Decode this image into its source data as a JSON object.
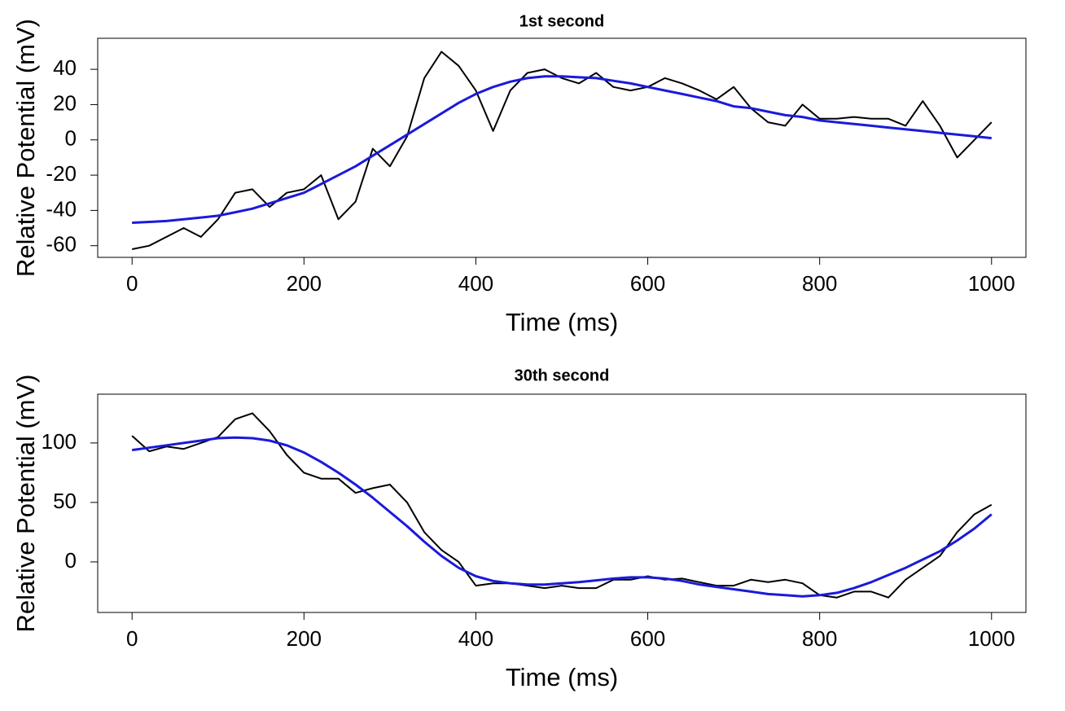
{
  "chart_data": [
    {
      "type": "line",
      "title": "1st second",
      "xlabel": "Time (ms)",
      "ylabel": "Relative Potential (mV)",
      "x": [
        0,
        20,
        40,
        60,
        80,
        100,
        120,
        140,
        160,
        180,
        200,
        220,
        240,
        260,
        280,
        300,
        320,
        340,
        360,
        380,
        400,
        420,
        440,
        460,
        480,
        500,
        520,
        540,
        560,
        580,
        600,
        620,
        640,
        660,
        680,
        700,
        720,
        740,
        760,
        780,
        800,
        820,
        840,
        860,
        880,
        900,
        920,
        940,
        960,
        980,
        1000
      ],
      "series": [
        {
          "color": "#000000",
          "values": [
            -62,
            -60,
            -55,
            -50,
            -55,
            -45,
            -30,
            -28,
            -38,
            -30,
            -28,
            -20,
            -45,
            -35,
            -5,
            -15,
            2,
            35,
            50,
            42,
            28,
            5,
            28,
            38,
            40,
            35,
            32,
            38,
            30,
            28,
            30,
            35,
            32,
            28,
            23,
            30,
            18,
            10,
            8,
            20,
            12,
            12,
            13,
            12,
            12,
            8,
            22,
            8,
            -10,
            0,
            10
          ]
        },
        {
          "color": "#1a1adb",
          "values": [
            -47,
            -46.5,
            -46,
            -45,
            -44,
            -43,
            -41,
            -39,
            -36,
            -33,
            -30,
            -25,
            -20,
            -15,
            -9,
            -3,
            3,
            9,
            15,
            21,
            26,
            30,
            33,
            35,
            36,
            36,
            35.5,
            35,
            33.5,
            32,
            30,
            28,
            26,
            24,
            22,
            19,
            18,
            16,
            14,
            13,
            11,
            10,
            9,
            8,
            7,
            6,
            5,
            4,
            3,
            2,
            1
          ]
        }
      ],
      "xlim": [
        -40,
        1040
      ],
      "xticks": [
        0,
        200,
        400,
        600,
        800,
        1000
      ],
      "ylim": [
        -66.6,
        57.6
      ],
      "yticks": [
        -60,
        -40,
        -20,
        0,
        20,
        40
      ]
    },
    {
      "type": "line",
      "title": "30th second",
      "xlabel": "Time (ms)",
      "ylabel": "Relative Potential (mV)",
      "x": [
        0,
        20,
        40,
        60,
        80,
        100,
        120,
        140,
        160,
        180,
        200,
        220,
        240,
        260,
        280,
        300,
        320,
        340,
        360,
        380,
        400,
        420,
        440,
        460,
        480,
        500,
        520,
        540,
        560,
        580,
        600,
        620,
        640,
        660,
        680,
        700,
        720,
        740,
        760,
        780,
        800,
        820,
        840,
        860,
        880,
        900,
        920,
        940,
        960,
        980,
        1000
      ],
      "series": [
        {
          "color": "#000000",
          "values": [
            106,
            93,
            97,
            95,
            100,
            105,
            120,
            125,
            110,
            90,
            75,
            70,
            70,
            58,
            62,
            65,
            50,
            25,
            10,
            0,
            -20,
            -18,
            -18,
            -20,
            -22,
            -20,
            -22,
            -22,
            -15,
            -15,
            -12,
            -15,
            -14,
            -17,
            -20,
            -20,
            -15,
            -17,
            -15,
            -18,
            -28,
            -30,
            -25,
            -25,
            -30,
            -15,
            -5,
            5,
            25,
            40,
            48
          ]
        },
        {
          "color": "#1a1adb",
          "values": [
            94,
            96,
            98,
            100,
            102,
            104,
            104.5,
            104,
            102,
            98,
            92,
            84,
            75,
            65,
            54,
            42,
            30,
            17,
            5,
            -5,
            -12,
            -16,
            -18,
            -19,
            -19,
            -18,
            -17,
            -15.5,
            -14,
            -13,
            -13,
            -14,
            -16,
            -19,
            -21,
            -23,
            -25,
            -27,
            -28,
            -29,
            -28,
            -26,
            -22,
            -17,
            -11,
            -5,
            2,
            9,
            18,
            28,
            40
          ]
        }
      ],
      "xlim": [
        -40,
        1040
      ],
      "xticks": [
        0,
        200,
        400,
        600,
        800,
        1000
      ],
      "ylim": [
        -42.5,
        141
      ],
      "yticks": [
        0,
        50,
        100
      ]
    }
  ]
}
